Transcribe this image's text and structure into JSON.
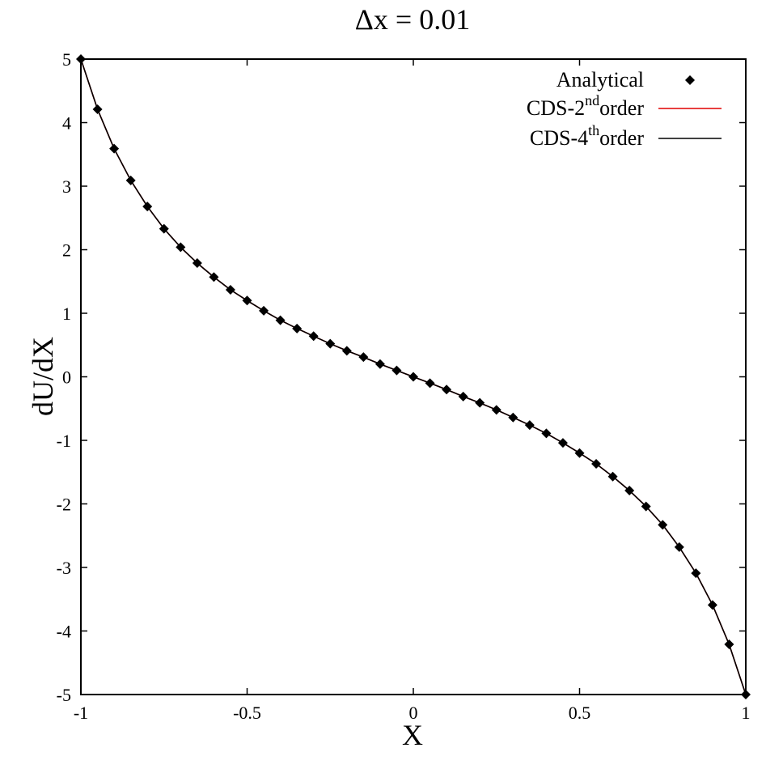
{
  "chart_data": {
    "type": "line",
    "title": "Δx = 0.01",
    "xlabel": "X",
    "ylabel": "dU/dX",
    "xlim": [
      -1,
      1
    ],
    "ylim": [
      -5,
      5
    ],
    "x_ticks": [
      "-1",
      "-0.5",
      "0",
      "0.5",
      "1"
    ],
    "y_ticks": [
      "5",
      "4",
      "3",
      "2",
      "1",
      "0",
      "-1",
      "-2",
      "-3",
      "-4",
      "-5"
    ],
    "grid": false,
    "legend_position": "top-right",
    "legend": [
      {
        "base": "Analytical",
        "sup": "",
        "suffix": ""
      },
      {
        "base": "CDS-2",
        "sup": "nd",
        "suffix": "order"
      },
      {
        "base": "CDS-4",
        "sup": "th",
        "suffix": "order"
      }
    ],
    "series": [
      {
        "name": "Analytical",
        "style": "markers",
        "marker": "diamond",
        "color": "#000000",
        "x": [
          -1,
          -0.95,
          -0.9,
          -0.85,
          -0.8,
          -0.75,
          -0.7,
          -0.65,
          -0.6,
          -0.55,
          -0.5,
          -0.45,
          -0.4,
          -0.35,
          -0.3,
          -0.25,
          -0.2,
          -0.15,
          -0.1,
          -0.05,
          0,
          0.05,
          0.1,
          0.15,
          0.2,
          0.25,
          0.3,
          0.35,
          0.4,
          0.45,
          0.5,
          0.55,
          0.6,
          0.65,
          0.7,
          0.75,
          0.8,
          0.85,
          0.9,
          0.95,
          1
        ],
        "y": [
          5,
          4.21,
          3.59,
          3.09,
          2.68,
          2.33,
          2.04,
          1.79,
          1.57,
          1.37,
          1.2,
          1.04,
          0.89,
          0.76,
          0.64,
          0.52,
          0.41,
          0.31,
          0.2,
          0.1,
          0,
          -0.1,
          -0.2,
          -0.31,
          -0.41,
          -0.52,
          -0.64,
          -0.76,
          -0.89,
          -1.04,
          -1.2,
          -1.37,
          -1.57,
          -1.79,
          -2.04,
          -2.33,
          -2.68,
          -3.09,
          -3.59,
          -4.21,
          -5
        ]
      },
      {
        "name": "CDS-2ndorder",
        "style": "line",
        "color": "#e00000",
        "x": [
          -1,
          -0.95,
          -0.9,
          -0.85,
          -0.8,
          -0.75,
          -0.7,
          -0.65,
          -0.6,
          -0.55,
          -0.5,
          -0.45,
          -0.4,
          -0.35,
          -0.3,
          -0.25,
          -0.2,
          -0.15,
          -0.1,
          -0.05,
          0,
          0.05,
          0.1,
          0.15,
          0.2,
          0.25,
          0.3,
          0.35,
          0.4,
          0.45,
          0.5,
          0.55,
          0.6,
          0.65,
          0.7,
          0.75,
          0.8,
          0.85,
          0.9,
          0.95,
          1
        ],
        "y": [
          5,
          4.21,
          3.59,
          3.09,
          2.68,
          2.33,
          2.04,
          1.79,
          1.57,
          1.37,
          1.2,
          1.04,
          0.89,
          0.76,
          0.64,
          0.52,
          0.41,
          0.31,
          0.2,
          0.1,
          0,
          -0.1,
          -0.2,
          -0.31,
          -0.41,
          -0.52,
          -0.64,
          -0.76,
          -0.89,
          -1.04,
          -1.2,
          -1.37,
          -1.57,
          -1.79,
          -2.04,
          -2.33,
          -2.68,
          -3.09,
          -3.59,
          -4.21,
          -5
        ]
      },
      {
        "name": "CDS-4thorder",
        "style": "line",
        "color": "#000000",
        "x": [
          -1,
          -0.95,
          -0.9,
          -0.85,
          -0.8,
          -0.75,
          -0.7,
          -0.65,
          -0.6,
          -0.55,
          -0.5,
          -0.45,
          -0.4,
          -0.35,
          -0.3,
          -0.25,
          -0.2,
          -0.15,
          -0.1,
          -0.05,
          0,
          0.05,
          0.1,
          0.15,
          0.2,
          0.25,
          0.3,
          0.35,
          0.4,
          0.45,
          0.5,
          0.55,
          0.6,
          0.65,
          0.7,
          0.75,
          0.8,
          0.85,
          0.9,
          0.95,
          1
        ],
        "y": [
          5,
          4.21,
          3.59,
          3.09,
          2.68,
          2.33,
          2.04,
          1.79,
          1.57,
          1.37,
          1.2,
          1.04,
          0.89,
          0.76,
          0.64,
          0.52,
          0.41,
          0.31,
          0.2,
          0.1,
          0,
          -0.1,
          -0.2,
          -0.31,
          -0.41,
          -0.52,
          -0.64,
          -0.76,
          -0.89,
          -1.04,
          -1.2,
          -1.37,
          -1.57,
          -1.79,
          -2.04,
          -2.33,
          -2.68,
          -3.09,
          -3.59,
          -4.21,
          -5
        ]
      }
    ]
  }
}
